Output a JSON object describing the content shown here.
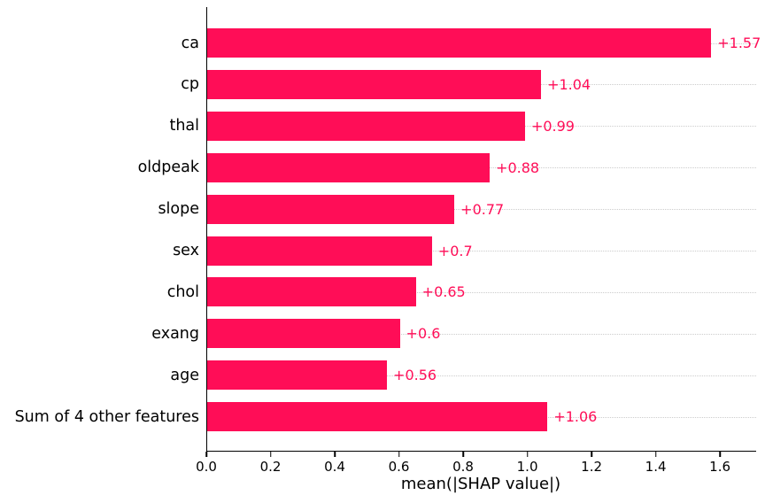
{
  "chart_data": {
    "type": "bar",
    "orientation": "horizontal",
    "title": "",
    "xlabel": "mean(|SHAP value|)",
    "ylabel": "",
    "categories": [
      "ca",
      "cp",
      "thal",
      "oldpeak",
      "slope",
      "sex",
      "chol",
      "exang",
      "age",
      "Sum of 4 other features"
    ],
    "values": [
      1.57,
      1.04,
      0.99,
      0.88,
      0.77,
      0.7,
      0.65,
      0.6,
      0.56,
      1.06
    ],
    "value_labels": [
      "+1.57",
      "+1.04",
      "+0.99",
      "+0.88",
      "+0.77",
      "+0.7",
      "+0.65",
      "+0.6",
      "+0.56",
      "+1.06"
    ],
    "x_tick_values": [
      0.0,
      0.2,
      0.4,
      0.6,
      0.8,
      1.0,
      1.2,
      1.4,
      1.6
    ],
    "x_ticks": [
      "0.0",
      "0.2",
      "0.4",
      "0.6",
      "0.8",
      "1.0",
      "1.2",
      "1.4",
      "1.6"
    ],
    "xlim": [
      0,
      1.71
    ],
    "bar_color": "#ff0d57",
    "value_label_color": "#ff0d57",
    "gridline_color": "#cccccc",
    "axis_color": "#000000",
    "grid": "dotted horizontal row guides",
    "legend_position": "none"
  }
}
